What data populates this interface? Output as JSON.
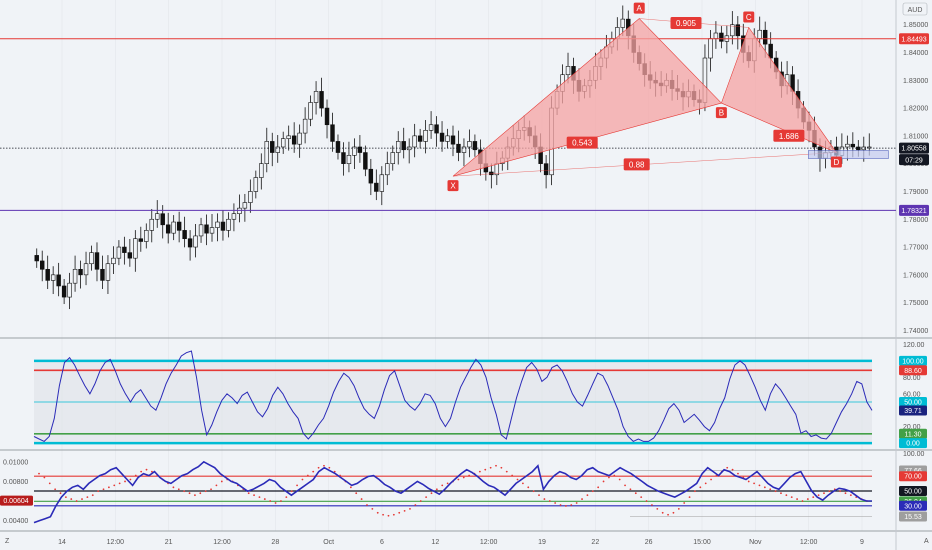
{
  "header": {
    "currency": "AUD"
  },
  "colors": {
    "background": "#f0f3f7",
    "candle": "#111111",
    "price_red": "#e53935",
    "price_purple": "#5e35b1",
    "pattern_fill": "#f5a3a3",
    "pattern_label": "#e53935",
    "osc_line": "#2b2bb8",
    "osc_cyan": "#00bcd4",
    "osc_green": "#43a047",
    "dots": "#e53935"
  },
  "chart_data": [
    {
      "type": "candlestick",
      "title": "",
      "ylim": [
        1.738,
        1.856
      ],
      "y_ticks": [
        "1.85000",
        "1.84000",
        "1.83000",
        "1.82000",
        "1.81000",
        "1.80000",
        "1.79000",
        "1.78000",
        "1.77000",
        "1.76000",
        "1.75000",
        "1.74000"
      ],
      "x_ticks": [
        "14",
        "12:00",
        "21",
        "12:00",
        "28",
        "Oct",
        "6",
        "12",
        "12:00",
        "19",
        "22",
        "26",
        "15:00",
        "Nov",
        "12:00",
        "9"
      ],
      "levels": [
        {
          "value": 1.84493,
          "label": "1.84493",
          "color": "#e53935"
        },
        {
          "value": 1.80558,
          "label": "1.80558",
          "color": "#131722",
          "style": "dotted"
        },
        {
          "value": 1.78321,
          "label": "1.78321",
          "color": "#5e35b1"
        }
      ],
      "countdown": "07:29",
      "close_series": [
        1.765,
        1.762,
        1.758,
        1.76,
        1.756,
        1.752,
        1.757,
        1.762,
        1.76,
        1.764,
        1.768,
        1.762,
        1.758,
        1.764,
        1.766,
        1.77,
        1.768,
        1.766,
        1.773,
        1.772,
        1.776,
        1.78,
        1.782,
        1.778,
        1.775,
        1.779,
        1.776,
        1.773,
        1.77,
        1.774,
        1.778,
        1.775,
        1.777,
        1.779,
        1.776,
        1.78,
        1.782,
        1.784,
        1.786,
        1.79,
        1.795,
        1.8,
        1.808,
        1.804,
        1.806,
        1.809,
        1.81,
        1.807,
        1.811,
        1.816,
        1.822,
        1.826,
        1.82,
        1.814,
        1.808,
        1.804,
        1.8,
        1.803,
        1.806,
        1.804,
        1.798,
        1.793,
        1.79,
        1.796,
        1.8,
        1.804,
        1.808,
        1.805,
        1.806,
        1.81,
        1.808,
        1.812,
        1.814,
        1.811,
        1.808,
        1.81,
        1.807,
        1.804,
        1.806,
        1.808,
        1.805,
        1.8,
        1.797,
        1.796,
        1.8,
        1.802,
        1.806,
        1.809,
        1.812,
        1.813,
        1.81,
        1.806,
        1.8,
        1.796,
        1.82,
        1.826,
        1.832,
        1.835,
        1.83,
        1.826,
        1.828,
        1.83,
        1.835,
        1.838,
        1.842,
        1.845,
        1.849,
        1.852,
        1.846,
        1.84,
        1.836,
        1.832,
        1.83,
        1.829,
        1.828,
        1.83,
        1.827,
        1.826,
        1.824,
        1.826,
        1.823,
        1.822,
        1.838,
        1.845,
        1.847,
        1.844,
        1.846,
        1.85,
        1.846,
        1.84,
        1.837,
        1.845,
        1.848,
        1.843,
        1.838,
        1.833,
        1.828,
        1.832,
        1.826,
        1.82,
        1.815,
        1.812,
        1.806,
        1.802,
        1.804,
        1.806,
        1.803,
        1.806,
        1.807,
        1.806,
        1.805,
        1.806,
        1.806
      ],
      "harmonic_pattern": {
        "points": [
          {
            "label": "X",
            "value": 1.7955
          },
          {
            "label": "A",
            "value": 1.8522
          },
          {
            "label": "B",
            "value": 1.8218
          },
          {
            "label": "C",
            "value": 1.849
          },
          {
            "label": "D",
            "value": 1.804
          }
        ],
        "ratios": [
          {
            "label": "0.905"
          },
          {
            "label": "0.543"
          },
          {
            "label": "1.686"
          },
          {
            "label": "0.88"
          }
        ]
      }
    },
    {
      "type": "line",
      "title": "",
      "ylim": [
        -6,
        123
      ],
      "y_ticks": [
        "120.00",
        "80.00",
        "60.00",
        "40.00",
        "20.00",
        "0.00"
      ],
      "levels": [
        {
          "value": 100.0,
          "label": "100.00",
          "color": "#00bcd4"
        },
        {
          "value": 88.6,
          "label": "88.60",
          "color": "#e53935"
        },
        {
          "value": 50.0,
          "label": "50.00",
          "color": "#00bcd4"
        },
        {
          "value": 11.3,
          "label": "11.30",
          "color": "#43a047"
        },
        {
          "value": 0.0,
          "label": "0.00",
          "color": "#00bcd4"
        }
      ],
      "current": {
        "value": 39.71,
        "label": "39.71"
      },
      "values": [
        8,
        5,
        2,
        8,
        30,
        70,
        98,
        104,
        95,
        82,
        70,
        60,
        72,
        88,
        98,
        102,
        88,
        72,
        60,
        50,
        60,
        65,
        55,
        45,
        40,
        55,
        72,
        85,
        95,
        106,
        110,
        112,
        80,
        40,
        10,
        22,
        38,
        52,
        60,
        55,
        48,
        58,
        62,
        50,
        38,
        32,
        42,
        58,
        68,
        60,
        48,
        38,
        30,
        12,
        5,
        12,
        22,
        30,
        45,
        62,
        75,
        85,
        80,
        70,
        55,
        42,
        35,
        30,
        45,
        65,
        82,
        88,
        70,
        52,
        45,
        40,
        48,
        60,
        58,
        48,
        30,
        20,
        30,
        50,
        68,
        80,
        92,
        102,
        95,
        80,
        55,
        35,
        10,
        5,
        30,
        55,
        75,
        92,
        98,
        90,
        75,
        80,
        92,
        95,
        88,
        75,
        60,
        50,
        45,
        58,
        72,
        85,
        82,
        70,
        55,
        40,
        20,
        8,
        2,
        5,
        2,
        2,
        6,
        15,
        28,
        42,
        48,
        40,
        25,
        30,
        35,
        28,
        20,
        15,
        25,
        42,
        55,
        78,
        95,
        100,
        95,
        82,
        68,
        52,
        40,
        60,
        72,
        65,
        55,
        45,
        35,
        12,
        15,
        8,
        10,
        6,
        5,
        12,
        25,
        38,
        48,
        60,
        75,
        72,
        50,
        39.71
      ]
    },
    {
      "type": "line",
      "title": "",
      "ylim": [
        0.00325,
        0.0108
      ],
      "y_ticks": [
        "0.01000",
        "0.00800",
        "0.00600",
        "0.00400"
      ],
      "right_ticks": [
        "100.00"
      ],
      "levels": [
        {
          "value": 77.66,
          "label": "77.66",
          "color": "#9e9e9e"
        },
        {
          "value": 70.0,
          "label": "70.00",
          "color": "#e53935"
        },
        {
          "value": 50.0,
          "label": "50.00",
          "color": "#131722"
        },
        {
          "value": 36.04,
          "label": "36.04",
          "color": "#43a047"
        },
        {
          "value": 30.0,
          "label": "30.00",
          "color": "#2b2bb8"
        },
        {
          "value": 15.53,
          "label": "15.53",
          "color": "#9e9e9e"
        }
      ],
      "current": {
        "value": 0.00604,
        "label": "0.00604"
      },
      "values": [
        0.0038,
        0.004,
        0.0042,
        0.0044,
        0.0055,
        0.0064,
        0.007,
        0.0074,
        0.0076,
        0.0072,
        0.0078,
        0.0082,
        0.0086,
        0.0088,
        0.0092,
        0.0094,
        0.0088,
        0.0082,
        0.0076,
        0.0084,
        0.0088,
        0.0086,
        0.009,
        0.0084,
        0.008,
        0.0078,
        0.0082,
        0.0086,
        0.0088,
        0.0092,
        0.0095,
        0.01,
        0.0097,
        0.0094,
        0.0088,
        0.0084,
        0.008,
        0.0078,
        0.0074,
        0.007,
        0.0072,
        0.0075,
        0.0078,
        0.0082,
        0.008,
        0.0074,
        0.007,
        0.0066,
        0.007,
        0.0074,
        0.0078,
        0.0082,
        0.009,
        0.0094,
        0.0091,
        0.0088,
        0.0084,
        0.008,
        0.0076,
        0.0078,
        0.0082,
        0.0085,
        0.0086,
        0.0082,
        0.0077,
        0.0074,
        0.007,
        0.0068,
        0.0072,
        0.0076,
        0.008,
        0.0077,
        0.0073,
        0.007,
        0.0067,
        0.0072,
        0.0078,
        0.0083,
        0.0088,
        0.0092,
        0.0089,
        0.0085,
        0.008,
        0.0076,
        0.0074,
        0.007,
        0.0066,
        0.0072,
        0.0078,
        0.0082,
        0.0086,
        0.009,
        0.0096,
        0.0072,
        0.008,
        0.0086,
        0.009,
        0.0088,
        0.0084,
        0.0082,
        0.0086,
        0.0092,
        0.0094,
        0.009,
        0.0088,
        0.0086,
        0.009,
        0.0094,
        0.0091,
        0.0088,
        0.0084,
        0.008,
        0.0076,
        0.0073,
        0.007,
        0.0068,
        0.0066,
        0.0064,
        0.0067,
        0.007,
        0.0074,
        0.0078,
        0.0088,
        0.0094,
        0.009,
        0.0086,
        0.0092,
        0.009,
        0.0086,
        0.0084,
        0.0082,
        0.0086,
        0.009,
        0.0084,
        0.0078,
        0.0074,
        0.0072,
        0.0078,
        0.0084,
        0.0088,
        0.009,
        0.008,
        0.007,
        0.0064,
        0.0061,
        0.0066,
        0.007,
        0.0073,
        0.0072,
        0.007,
        0.0066,
        0.0062,
        0.006,
        0.006
      ],
      "dots": [
        0.0088,
        0.0084,
        0.0078,
        0.0072,
        0.0068,
        0.0064,
        0.0062,
        0.006,
        0.0062,
        0.0064,
        0.0066,
        0.007,
        0.0072,
        0.0074,
        0.0076,
        0.0078,
        0.008,
        0.0082,
        0.0086,
        0.009,
        0.0092,
        0.009,
        0.0086,
        0.0082,
        0.0078,
        0.0074,
        0.0072,
        0.007,
        0.0068,
        0.0066,
        0.0068,
        0.007,
        0.0072,
        0.0076,
        0.008,
        0.0082,
        0.008,
        0.0076,
        0.0072,
        0.0068,
        0.0066,
        0.0064,
        0.0062,
        0.006,
        0.0058,
        0.006,
        0.0064,
        0.007,
        0.0076,
        0.0082,
        0.0086,
        0.009,
        0.0094,
        0.0096,
        0.0094,
        0.009,
        0.0086,
        0.008,
        0.0074,
        0.0068,
        0.0062,
        0.0056,
        0.0052,
        0.0048,
        0.0046,
        0.0045,
        0.0046,
        0.0048,
        0.005,
        0.0052,
        0.0056,
        0.006,
        0.0064,
        0.0068,
        0.0072,
        0.0076,
        0.0078,
        0.008,
        0.0082,
        0.0084,
        0.0086,
        0.0088,
        0.009,
        0.0092,
        0.0094,
        0.0096,
        0.0094,
        0.009,
        0.0086,
        0.0082,
        0.0078,
        0.0074,
        0.007,
        0.0066,
        0.0062,
        0.006,
        0.0058,
        0.0056,
        0.0055,
        0.0056,
        0.0058,
        0.0062,
        0.0066,
        0.007,
        0.0074,
        0.008,
        0.0084,
        0.0086,
        0.0082,
        0.0076,
        0.0072,
        0.0068,
        0.0064,
        0.006,
        0.0056,
        0.0052,
        0.0048,
        0.0046,
        0.0048,
        0.0052,
        0.0058,
        0.0064,
        0.007,
        0.0074,
        0.0078,
        0.0082,
        0.0086,
        0.009,
        0.0094,
        0.0092,
        0.0088,
        0.0084,
        0.008,
        0.0078,
        0.0076,
        0.0074,
        0.0072,
        0.007,
        0.0068,
        0.0066,
        0.0064,
        0.0062,
        0.006,
        0.0062,
        0.0064,
        0.0066,
        0.0068,
        0.007,
        0.0072,
        0.007,
        0.0068,
        0.0066,
        0.0064,
        0.0062,
        0.006
      ]
    }
  ],
  "bottom_corners": {
    "left": "Z",
    "right": "A"
  }
}
